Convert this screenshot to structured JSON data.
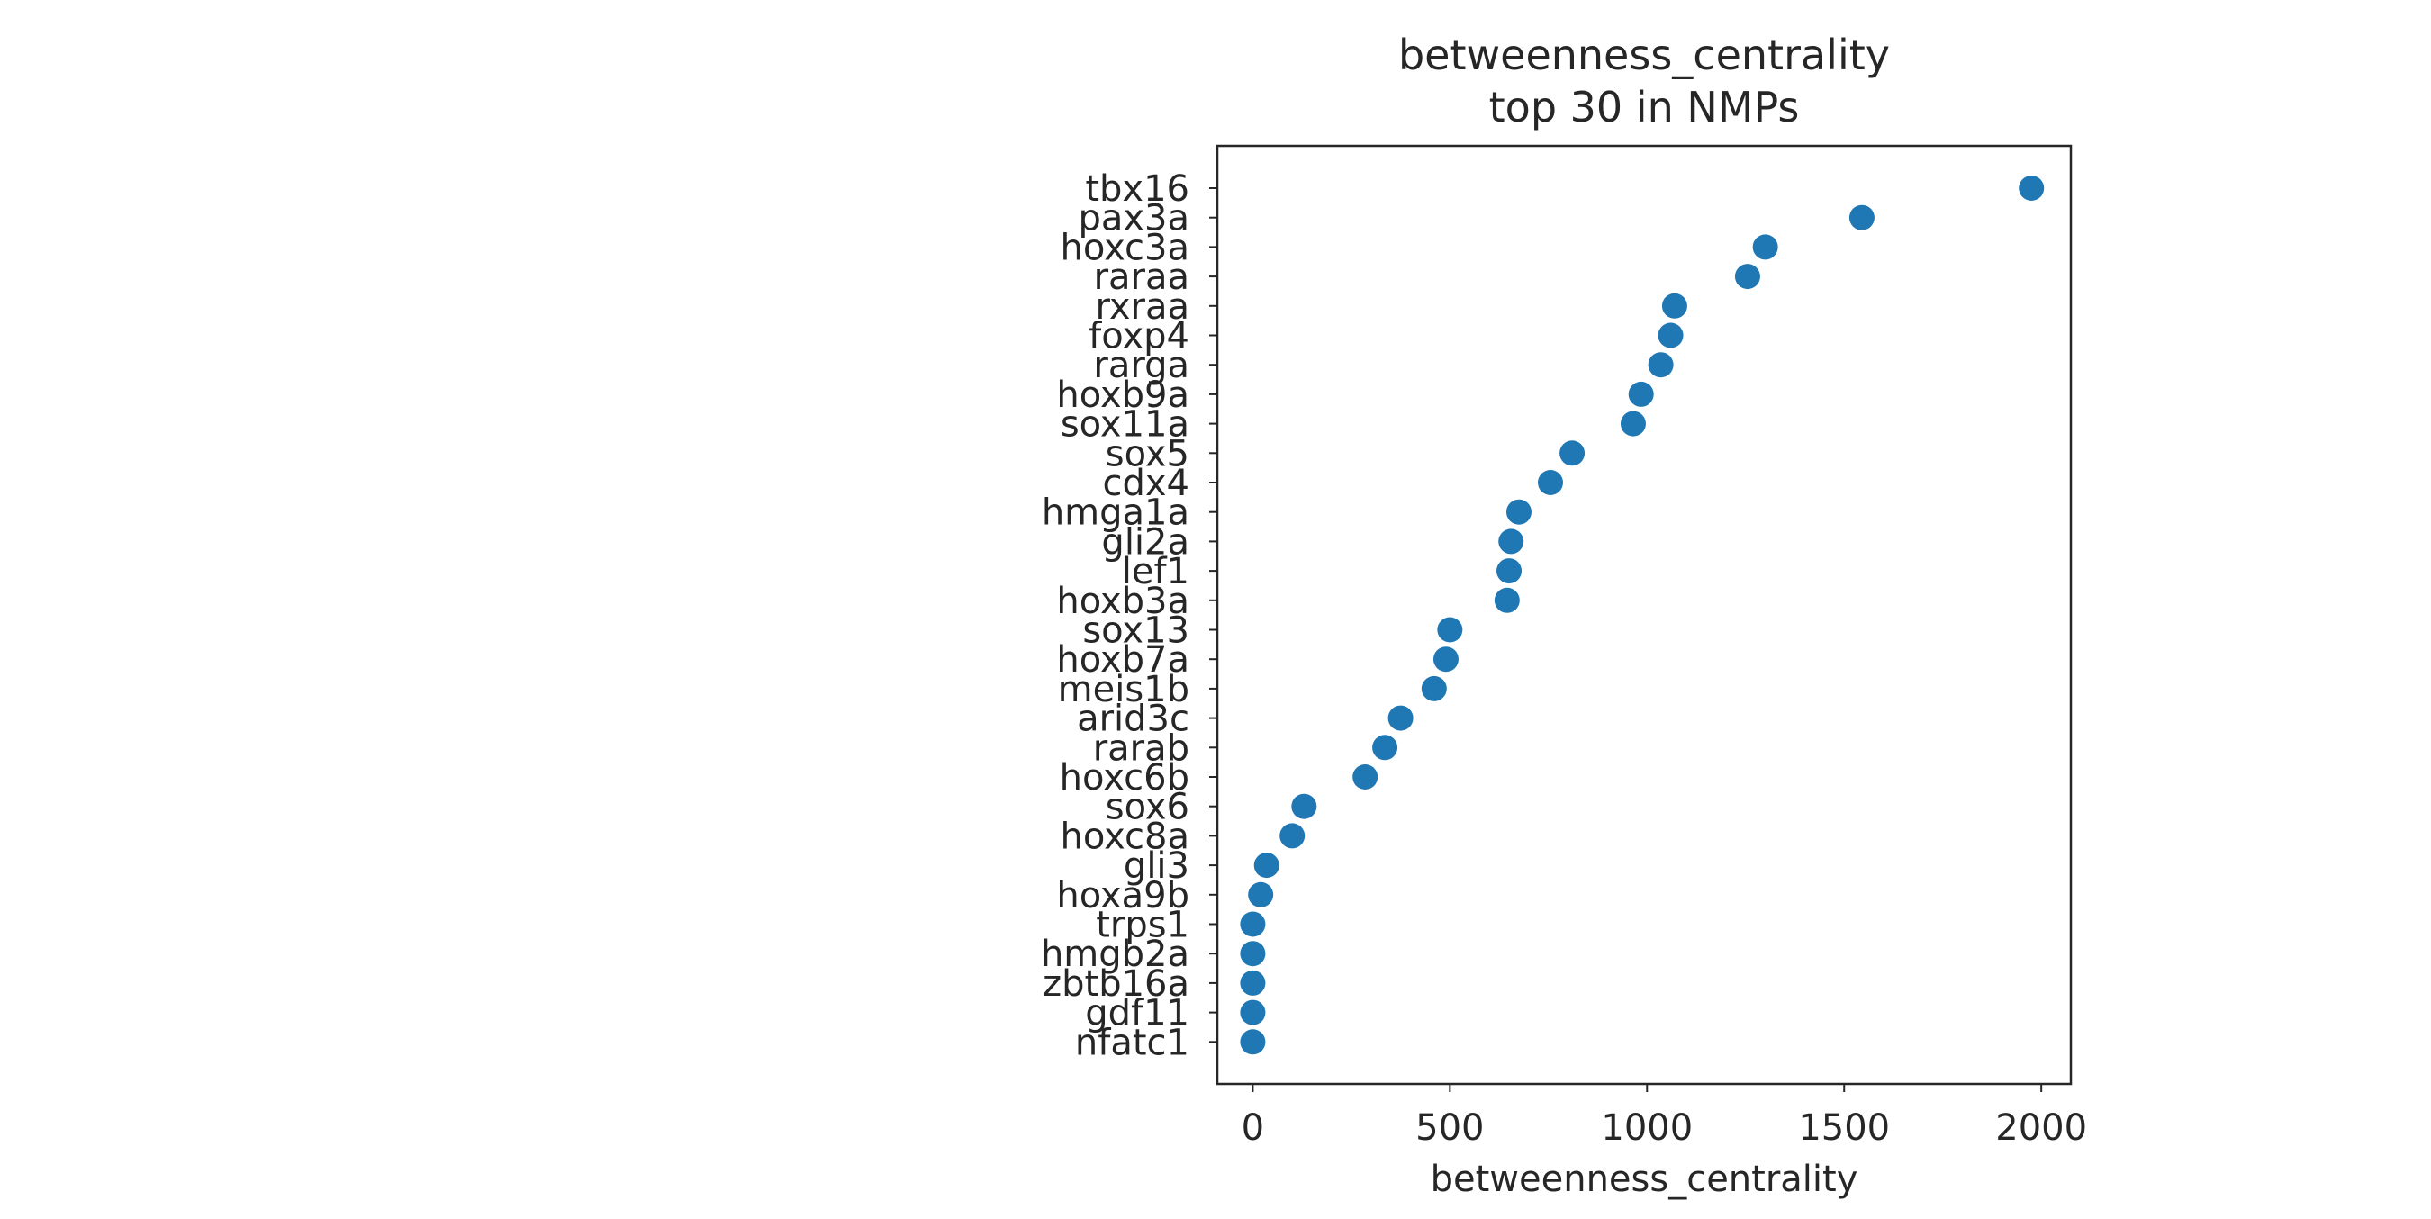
{
  "chart_data": {
    "type": "scatter",
    "title": "betweenness_centrality\ntop 30 in NMPs",
    "xlabel": "betweenness_centrality",
    "ylabel": "",
    "xlim": [
      -90,
      2075
    ],
    "xticks": [
      0,
      500,
      1000,
      1500,
      2000
    ],
    "xtick_labels": [
      "0",
      "500",
      "1000",
      "1500",
      "2000"
    ],
    "grid": false,
    "legend": "none",
    "marker_color": "#1f77b4",
    "categories": [
      "tbx16",
      "pax3a",
      "hoxc3a",
      "raraa",
      "rxraa",
      "foxp4",
      "rarga",
      "hoxb9a",
      "sox11a",
      "sox5",
      "cdx4",
      "hmga1a",
      "gli2a",
      "lef1",
      "hoxb3a",
      "sox13",
      "hoxb7a",
      "meis1b",
      "arid3c",
      "rarab",
      "hoxc6b",
      "sox6",
      "hoxc8a",
      "gli3",
      "hoxa9b",
      "trps1",
      "hmgb2a",
      "zbtb16a",
      "gdf11",
      "nfatc1"
    ],
    "values": [
      1975,
      1545,
      1300,
      1255,
      1070,
      1060,
      1035,
      985,
      965,
      810,
      755,
      675,
      655,
      650,
      645,
      500,
      490,
      460,
      375,
      335,
      285,
      130,
      100,
      35,
      20,
      0,
      0,
      0,
      0,
      0
    ]
  }
}
